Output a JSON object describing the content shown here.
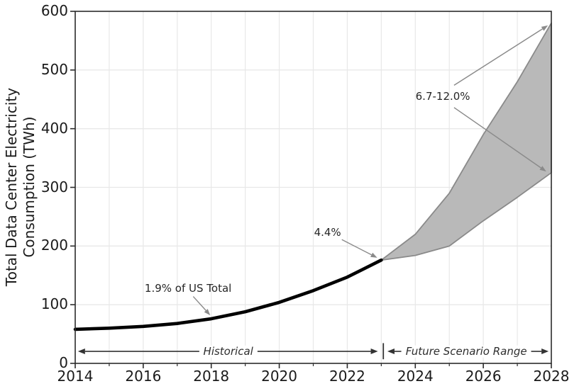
{
  "chart_data": {
    "type": "line",
    "title": "",
    "xlabel": "",
    "ylabel": "Total Data Center Electricity Consumption (TWh)",
    "ylabel_display": "Total Data Center Electricity\nConsumption (TWh)",
    "xlim": [
      2014,
      2028
    ],
    "ylim": [
      0,
      600
    ],
    "xticks_major": [
      2014,
      2016,
      2018,
      2020,
      2022,
      2024,
      2026,
      2028
    ],
    "xticks_minor": [
      2015,
      2017,
      2019,
      2021,
      2023,
      2025,
      2027
    ],
    "yticks": [
      0,
      100,
      200,
      300,
      400,
      500,
      600
    ],
    "grid": {
      "on": true,
      "x_step_years": 1,
      "y_step": 100,
      "color": "#e8e8e8"
    },
    "legend": {
      "visible": false
    },
    "colors": {
      "historical_line": "#000000",
      "band_fill": "#b9b9b9",
      "band_edge": "#8a8a8a",
      "annotation_arrow": "#8a8a8a",
      "range_arrow": "#333333",
      "spine": "#2b2b2b",
      "text": "#1a1a1a"
    },
    "series": [
      {
        "name": "Historical consumption",
        "kind": "line",
        "x": [
          2014,
          2015,
          2016,
          2017,
          2018,
          2019,
          2020,
          2021,
          2022,
          2023
        ],
        "y": [
          58,
          60,
          63,
          68,
          76,
          88,
          104,
          124,
          147,
          176
        ]
      },
      {
        "name": "Future scenario range",
        "kind": "band",
        "x": [
          2023,
          2024,
          2025,
          2026,
          2027,
          2028
        ],
        "y_low": [
          176,
          184,
          200,
          243,
          283,
          325
        ],
        "y_high": [
          176,
          220,
          290,
          390,
          480,
          580
        ]
      }
    ],
    "annotations": [
      {
        "id": "share-2018",
        "label": "1.9% of US Total",
        "text_at": [
          2017.32,
          128
        ],
        "arrows": [
          {
            "from": [
              2017.47,
              114
            ],
            "to": [
              2017.97,
              82
            ]
          }
        ]
      },
      {
        "id": "share-2023",
        "label": "4.4%",
        "text_at": [
          2021.42,
          223
        ],
        "arrows": [
          {
            "from": [
              2021.84,
              211
            ],
            "to": [
              2022.88,
              180
            ]
          }
        ]
      },
      {
        "id": "share-2028",
        "label": "6.7-12.0%",
        "text_at": [
          2024.81,
          455
        ],
        "arrows": [
          {
            "from": [
              2025.14,
              474
            ],
            "to": [
              2027.9,
              576
            ]
          },
          {
            "from": [
              2025.14,
              436
            ],
            "to": [
              2027.85,
              327
            ]
          }
        ]
      }
    ],
    "range_markers": [
      {
        "id": "historical",
        "label": "Historical",
        "x0": 2014.08,
        "x1": 2022.9,
        "y": 20.5,
        "label_at": [
          2018.5,
          20.5
        ]
      },
      {
        "id": "future",
        "label": "Future Scenario Range",
        "x0": 2023.18,
        "x1": 2027.92,
        "y": 20.5,
        "label_at": [
          2025.5,
          20.5
        ]
      }
    ],
    "divider": {
      "x": 2023.06,
      "y0": 7,
      "y1": 34.5
    }
  }
}
